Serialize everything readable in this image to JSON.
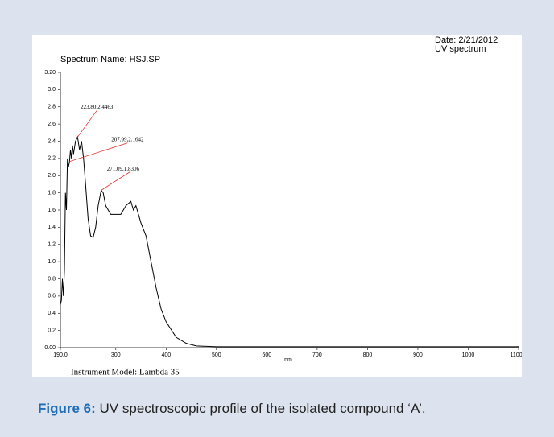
{
  "chart_data": {
    "type": "line",
    "header_right": [
      "Date: 2/21/2012",
      "UV spectrum"
    ],
    "title": "Spectrum Name: HSJ.SP",
    "xlabel": "nm",
    "footer": "Instrument Model: Lambda 35",
    "x": [
      190,
      192,
      194,
      196,
      198,
      200,
      202,
      204,
      206,
      208,
      210,
      212,
      214,
      216,
      220,
      224,
      228,
      232,
      236,
      240,
      245,
      250,
      255,
      260,
      265,
      271,
      275,
      280,
      290,
      300,
      310,
      320,
      330,
      335,
      340,
      345,
      350,
      360,
      370,
      380,
      390,
      400,
      420,
      440,
      460,
      500,
      600,
      700,
      800,
      900,
      1000,
      1100
    ],
    "series": [
      {
        "name": "HSJ.SP",
        "color": "#000000",
        "values": [
          0.5,
          0.55,
          0.8,
          0.6,
          0.9,
          1.8,
          1.6,
          2.2,
          2.1,
          2.16,
          2.3,
          2.2,
          2.35,
          2.25,
          2.4,
          2.45,
          2.3,
          2.4,
          2.2,
          1.9,
          1.5,
          1.3,
          1.28,
          1.4,
          1.65,
          1.83,
          1.8,
          1.65,
          1.55,
          1.55,
          1.55,
          1.65,
          1.7,
          1.6,
          1.65,
          1.55,
          1.45,
          1.3,
          1.0,
          0.7,
          0.45,
          0.3,
          0.12,
          0.05,
          0.02,
          0.01,
          0.01,
          0.01,
          0.01,
          0.01,
          0.01,
          0.01
        ]
      }
    ],
    "annotations": [
      {
        "text": "223.80,2.4463",
        "x": 223.8,
        "y": 2.4463
      },
      {
        "text": "207.99,2.1642",
        "x": 207.99,
        "y": 2.1642
      },
      {
        "text": "271.09,1.8306",
        "x": 271.09,
        "y": 1.8306
      }
    ],
    "xlim": [
      190,
      1100
    ],
    "xticks": [
      {
        "value": 190,
        "label": "190.0"
      },
      300,
      400,
      500,
      600,
      700,
      800,
      900,
      1000,
      {
        "value": 1100,
        "label": "1100.0"
      }
    ],
    "ylim": [
      0,
      3.2
    ],
    "yticks": [
      {
        "value": 0,
        "label": "0.00"
      },
      0.2,
      0.4,
      0.6,
      0.8,
      {
        "value": 1,
        "label": "1.0"
      },
      1.2,
      1.4,
      1.6,
      1.8,
      {
        "value": 2,
        "label": "2.0"
      },
      2.2,
      2.4,
      2.6,
      2.8,
      {
        "value": 3,
        "label": "3.0"
      },
      {
        "value": 3.2,
        "label": "3.20"
      }
    ]
  },
  "caption": {
    "label": "Figure 6:",
    "text": "UV spectroscopic profile of the isolated compound ‘A’."
  }
}
